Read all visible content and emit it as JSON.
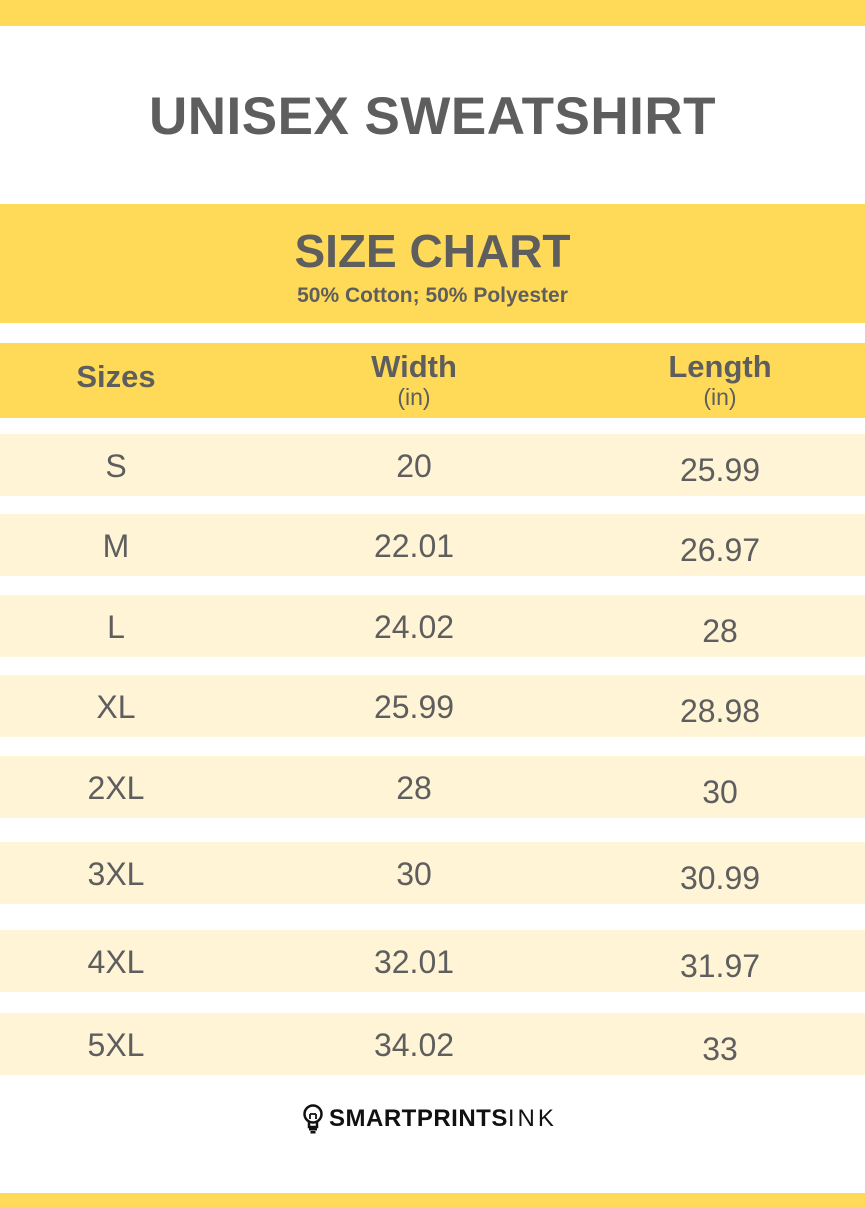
{
  "title": "UNISEX SWEATSHIRT",
  "band": {
    "heading": "SIZE CHART",
    "material": "50% Cotton; 50% Polyester"
  },
  "table": {
    "headers": [
      {
        "label": "Sizes",
        "unit": ""
      },
      {
        "label": "Width",
        "unit": "(in)"
      },
      {
        "label": "Length",
        "unit": "(in)"
      }
    ],
    "rows": [
      [
        "S",
        "20",
        "25.99"
      ],
      [
        "M",
        "22.01",
        "26.97"
      ],
      [
        "L",
        "24.02",
        "28"
      ],
      [
        "XL",
        "25.99",
        "28.98"
      ],
      [
        "2XL",
        "28",
        "30"
      ],
      [
        "3XL",
        "30",
        "30.99"
      ],
      [
        "4XL",
        "32.01",
        "31.97"
      ],
      [
        "5XL",
        "34.02",
        "33"
      ]
    ]
  },
  "logo": {
    "bold": "SMARTPRINTS",
    "light": "INK",
    "icon": "lightbulb-icon"
  },
  "colors": {
    "accent": "#FFDA58",
    "row": "#FFF4D6",
    "text": "#5E5E5E"
  }
}
